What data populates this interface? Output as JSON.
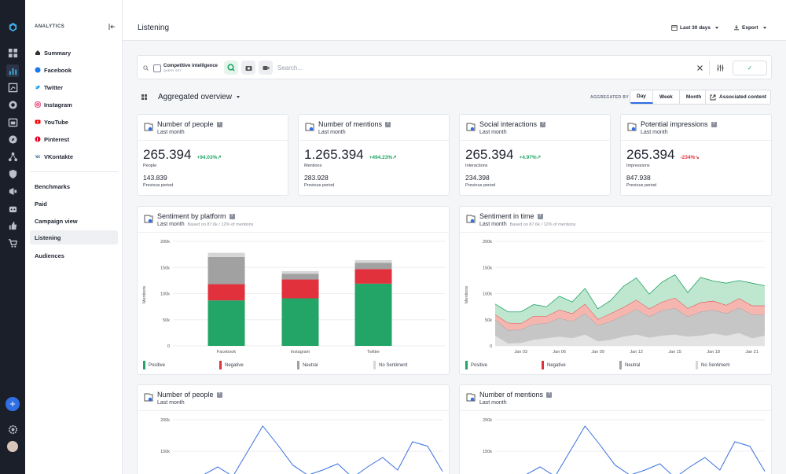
{
  "sidebar": {
    "section_label": "ANALYTICS",
    "platforms": [
      "Summary",
      "Facebook",
      "Twitter",
      "Instagram",
      "YouTube",
      "Pinterest",
      "VKontakte"
    ],
    "items": [
      "Benchmarks",
      "Paid",
      "Campaign view",
      "Listening",
      "Audiences"
    ]
  },
  "header": {
    "title": "Listening",
    "date_range": "Last 30 days",
    "export": "Export"
  },
  "search": {
    "chip_title": "Competitive intelligence",
    "chip_sub": "QUERY SET",
    "placeholder": "Search..."
  },
  "toolbar": {
    "view_label": "Aggregated overview",
    "aggregated_by": "AGGREGATED BY",
    "periods": [
      "Day",
      "Week",
      "Month"
    ],
    "active_period": "Day",
    "associated": "Associated content"
  },
  "kpis": [
    {
      "title": "Number of people",
      "period": "Last month",
      "value": "265.394",
      "delta": "+94.03%",
      "delta_color": "#23a567",
      "label": "People",
      "prev": "143.839",
      "prev_label": "Previous period"
    },
    {
      "title": "Number of mentions",
      "period": "Last month",
      "value": "1.265.394",
      "delta": "+494.23%",
      "delta_color": "#23a567",
      "label": "Mentions",
      "prev": "283.928",
      "prev_label": "Previous period"
    },
    {
      "title": "Social interactions",
      "period": "Last month",
      "value": "265.394",
      "delta": "+4.97%",
      "delta_color": "#23a567",
      "label": "Interactions",
      "prev": "234.398",
      "prev_label": "Previous period"
    },
    {
      "title": "Potential impressions",
      "period": "Last month",
      "value": "265.394",
      "delta": "-234%",
      "delta_color": "#e0313d",
      "label": "Impressions",
      "prev": "847.938",
      "prev_label": "Previous period"
    }
  ],
  "sentiment_platform": {
    "title": "Sentiment by platform",
    "period": "Last month",
    "based": "Based on 87.6k / 12% of mentions",
    "ylabel": "Mentions"
  },
  "sentiment_time": {
    "title": "Sentiment in time",
    "period": "Last month",
    "based": "Based on 87.6k / 12% of mentions",
    "ylabel": "Mentions"
  },
  "people_card": {
    "title": "Number of people",
    "period": "Last month"
  },
  "mentions_card": {
    "title": "Number of mentions",
    "period": "Last month"
  },
  "legend": [
    "Positive",
    "Negative",
    "Neutral",
    "No Sentiment"
  ],
  "colors": {
    "positive": "#23a567",
    "negative": "#e0313d",
    "neutral": "#a1a1a1",
    "none": "#d6d6d6",
    "line": "#3a6fe0",
    "accent": "#2f6fe4"
  },
  "chart_data": [
    {
      "type": "bar",
      "stacked": true,
      "categories": [
        "Facebook",
        "Instagram",
        "Twitter"
      ],
      "series": [
        {
          "name": "Positive",
          "values": [
            87000,
            91000,
            119000
          ]
        },
        {
          "name": "Negative",
          "values": [
            31000,
            36000,
            28000
          ]
        },
        {
          "name": "Neutral",
          "values": [
            52000,
            11000,
            12000
          ]
        },
        {
          "name": "No Sentiment",
          "values": [
            8000,
            5000,
            5000
          ]
        }
      ],
      "ylabel": "Mentions",
      "ylim": [
        0,
        200000
      ],
      "yticks": [
        "0",
        "50k",
        "100k",
        "150k",
        "200k"
      ]
    },
    {
      "type": "area",
      "stacked": true,
      "x": [
        "Jan 01",
        "Jan 02",
        "Jan 03",
        "Jan 04",
        "Jan 05",
        "Jan 06",
        "Jan 07",
        "Jan 08",
        "Jan 09",
        "Jan 10",
        "Jan 11",
        "Jan 12",
        "Jan 13",
        "Jan 14",
        "Jan 15",
        "Jan 16",
        "Jan 17",
        "Jan 18",
        "Jan 19",
        "Jan 20",
        "Jan 21",
        "Jan 22"
      ],
      "xticks": [
        "Jan 03",
        "Jan 06",
        "Jan 09",
        "Jan 12",
        "Jan 15",
        "Jan 18",
        "Jan 21"
      ],
      "series": [
        {
          "name": "No Sentiment",
          "values": [
            20000,
            5000,
            6000,
            12000,
            15000,
            18000,
            15000,
            22000,
            9000,
            12000,
            18000,
            22000,
            16000,
            20000,
            22000,
            18000,
            20000,
            24000,
            20000,
            25000,
            15000,
            20000
          ]
        },
        {
          "name": "Neutral",
          "values": [
            30000,
            25000,
            25000,
            30000,
            28000,
            35000,
            32000,
            40000,
            30000,
            35000,
            40000,
            48000,
            40000,
            48000,
            50000,
            38000,
            45000,
            45000,
            42000,
            48000,
            45000,
            40000
          ]
        },
        {
          "name": "Negative",
          "values": [
            10000,
            14000,
            12000,
            15000,
            14000,
            16000,
            15000,
            18000,
            12000,
            15000,
            16000,
            18000,
            15000,
            16000,
            20000,
            16000,
            18000,
            17000,
            16000,
            18000,
            17000,
            17000
          ]
        },
        {
          "name": "Positive",
          "values": [
            20000,
            21000,
            22000,
            22000,
            18000,
            26000,
            22000,
            30000,
            20000,
            25000,
            40000,
            42000,
            28000,
            38000,
            44000,
            30000,
            48000,
            38000,
            42000,
            34000,
            43000,
            38000
          ]
        }
      ],
      "ylabel": "Mentions",
      "ylim": [
        0,
        200000
      ],
      "yticks": [
        "0",
        "50k",
        "100k",
        "150k",
        "200k"
      ]
    },
    {
      "type": "line",
      "series": [
        {
          "name": "People",
          "values": [
            110000,
            108000,
            112000,
            125000,
            110000,
            150000,
            190000,
            160000,
            128000,
            112000,
            120000,
            130000,
            108000,
            125000,
            140000,
            120000,
            165000,
            158000,
            118000
          ]
        }
      ],
      "ylim": [
        0,
        200000
      ],
      "yticks": [
        "150k",
        "200k"
      ]
    },
    {
      "type": "line",
      "series": [
        {
          "name": "Mentions",
          "values": [
            110000,
            108000,
            112000,
            125000,
            110000,
            150000,
            190000,
            160000,
            128000,
            112000,
            120000,
            130000,
            108000,
            125000,
            140000,
            120000,
            165000,
            158000,
            118000
          ]
        }
      ],
      "ylim": [
        0,
        200000
      ],
      "yticks": [
        "150k",
        "200k"
      ]
    }
  ]
}
